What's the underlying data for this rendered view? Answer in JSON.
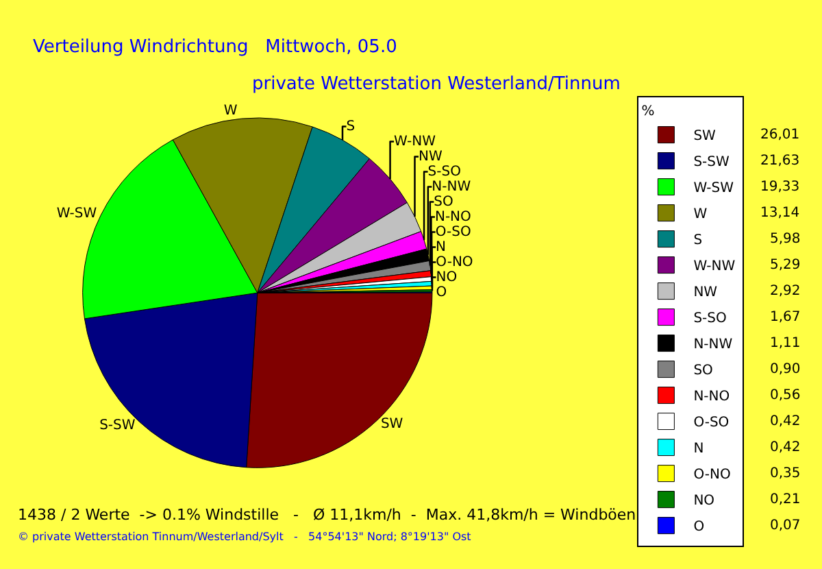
{
  "chart_data": {
    "type": "pie",
    "title": "Verteilung Windrichtung   Mittwoch, 05.0",
    "subtitle": "private Wetterstation Westerland/Tinnum",
    "legend_title": "%",
    "categories": [
      "SW",
      "S-SW",
      "W-SW",
      "W",
      "S",
      "W-NW",
      "NW",
      "S-SO",
      "N-NW",
      "SO",
      "N-NO",
      "O-SO",
      "N",
      "O-NO",
      "NO",
      "O"
    ],
    "values": [
      26.01,
      21.63,
      19.33,
      13.14,
      5.98,
      5.29,
      2.92,
      1.67,
      1.11,
      0.9,
      0.56,
      0.42,
      0.42,
      0.35,
      0.21,
      0.07
    ],
    "value_labels": [
      "26,01",
      "21,63",
      "19,33",
      "13,14",
      "5,98",
      "5,29",
      "2,92",
      "1,67",
      "1,11",
      "0,90",
      "0,56",
      "0,42",
      "0,42",
      "0,35",
      "0,21",
      "0,07"
    ],
    "colors": [
      "#800000",
      "#000080",
      "#00ff00",
      "#808000",
      "#008080",
      "#800080",
      "#c0c0c0",
      "#ff00ff",
      "#000000",
      "#808080",
      "#ff0000",
      "#ffffff",
      "#00ffff",
      "#ffff00",
      "#008000",
      "#0000ff"
    ],
    "legend": "right",
    "annotations": [
      "1438 / 2 Werte  -> 0.1% Windstille   -   Ø 11,1km/h  -  Max. 41,8km/h = Windböen",
      "© private Wetterstation Tinnum/Westerland/Sylt   -   54°54'13\" Nord; 8°19'13\" Ost"
    ]
  }
}
